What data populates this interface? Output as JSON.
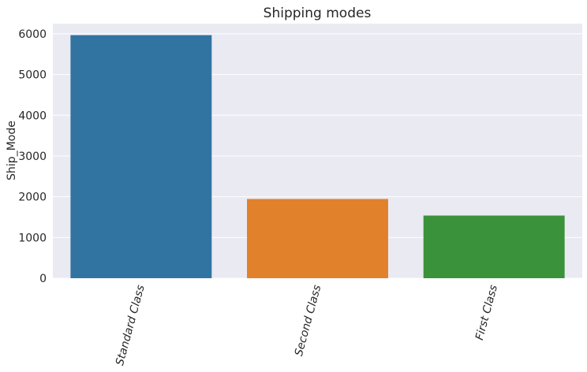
{
  "chart_data": {
    "type": "bar",
    "title": "Shipping modes",
    "xlabel": "",
    "ylabel": "Ship_Mode",
    "categories": [
      "Standard Class",
      "Second Class",
      "First Class"
    ],
    "values": [
      5968,
      1945,
      1538
    ],
    "colors": [
      "#3274a1",
      "#e1812c",
      "#3a923a"
    ],
    "ylim": [
      0,
      6250
    ],
    "yticks": [
      0,
      1000,
      2000,
      3000,
      4000,
      5000,
      6000
    ],
    "grid": true,
    "background": "#eaeaf2",
    "xtick_rotation": -75
  }
}
